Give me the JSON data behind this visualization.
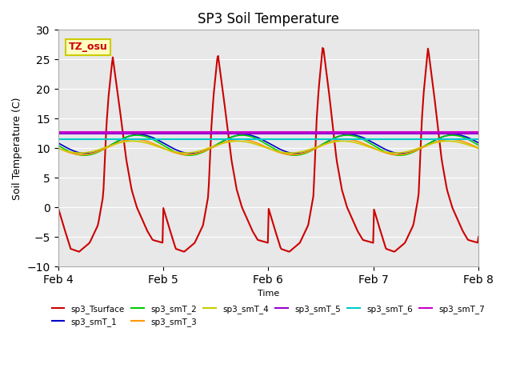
{
  "title": "SP3 Soil Temperature",
  "ylabel": "Soil Temperature (C)",
  "xlabel": "Time",
  "xlim": [
    0,
    4.0
  ],
  "ylim": [
    -10,
    30
  ],
  "yticks": [
    -10,
    -5,
    0,
    5,
    10,
    15,
    20,
    25,
    30
  ],
  "xtick_labels": [
    "Feb 4",
    "Feb 5",
    "Feb 6",
    "Feb 7",
    "Feb 8"
  ],
  "xtick_positions": [
    0,
    1,
    2,
    3,
    4
  ],
  "bg_color": "#e8e8e8",
  "annotation_text": "TZ_osu",
  "annotation_color": "#cc0000",
  "annotation_bg": "#ffffc0",
  "annotation_border": "#cccc00",
  "series_names": [
    "sp3_Tsurface",
    "sp3_smT_1",
    "sp3_smT_2",
    "sp3_smT_3",
    "sp3_smT_4",
    "sp3_smT_5",
    "sp3_smT_6",
    "sp3_smT_7"
  ],
  "series_colors": [
    "#cc0000",
    "#0000cc",
    "#00cc00",
    "#ff9900",
    "#cccc00",
    "#9900cc",
    "#00cccc",
    "#cc00cc"
  ],
  "series_lw": [
    1.5,
    1.2,
    1.2,
    1.2,
    1.2,
    1.5,
    1.5,
    1.5
  ]
}
